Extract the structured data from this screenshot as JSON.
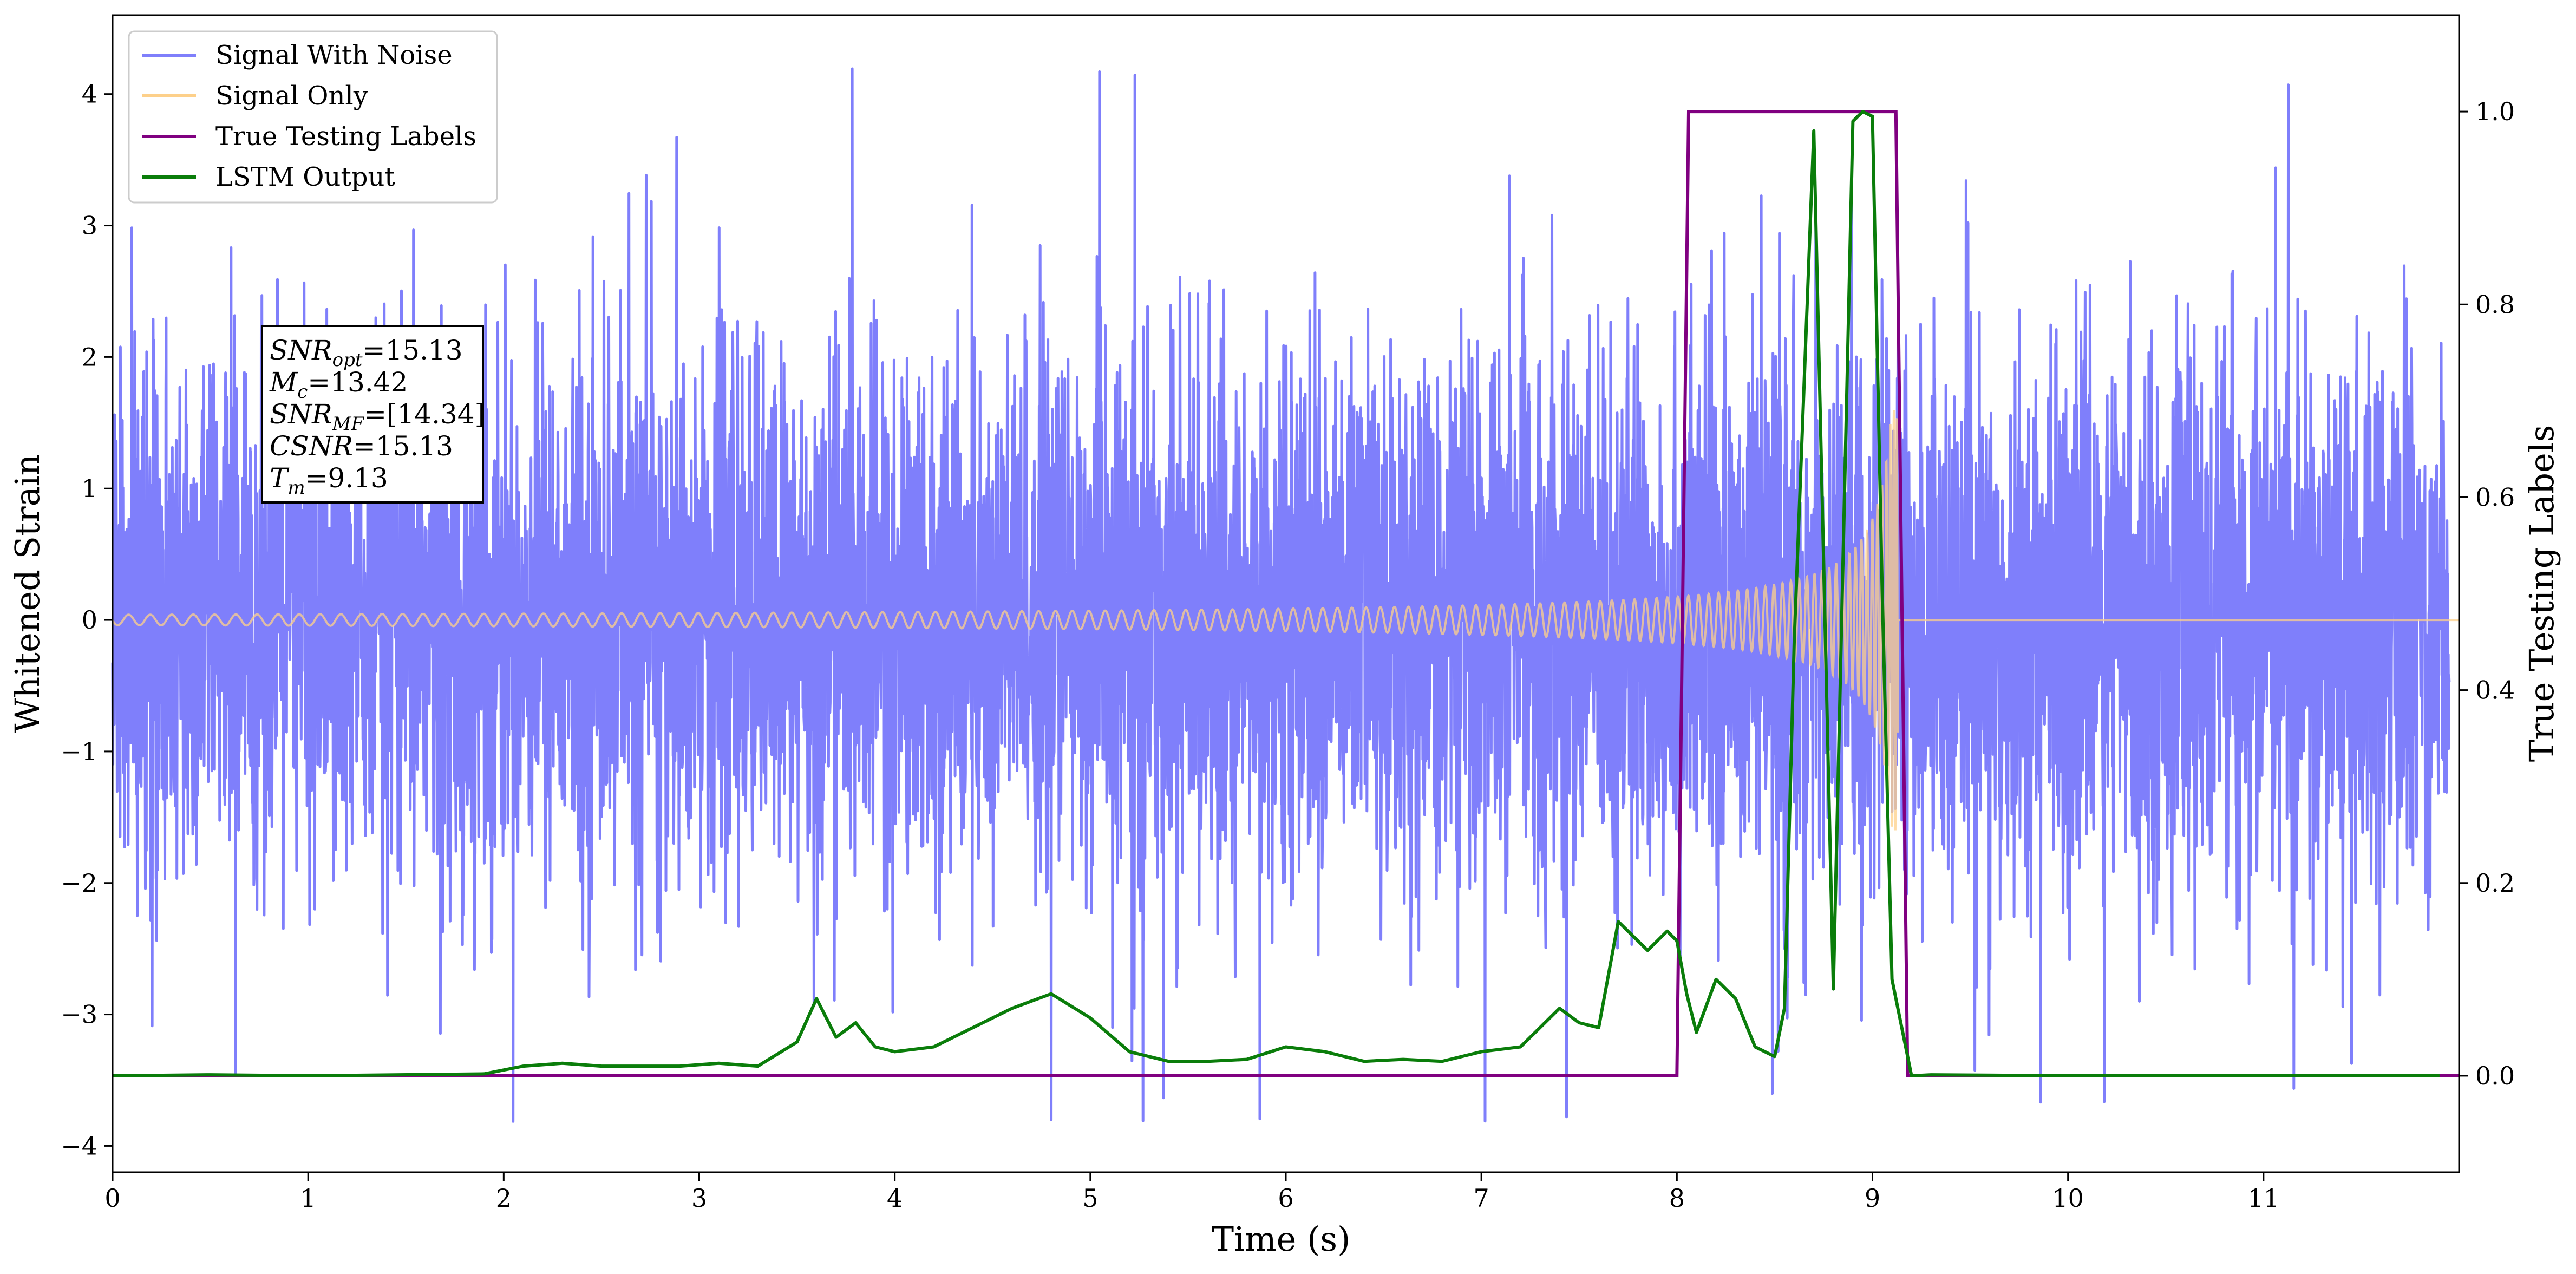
{
  "chart_data": {
    "type": "line",
    "xlabel": "Time (s)",
    "ylabel": "Whitened Strain",
    "y2label": "True Testing Labels",
    "xlim": [
      0,
      12
    ],
    "ylim": [
      -4.2,
      4.6
    ],
    "y2lim": [
      -0.1,
      1.1
    ],
    "xticks": [
      0,
      1,
      2,
      3,
      4,
      5,
      6,
      7,
      8,
      9,
      10,
      11
    ],
    "yticks": [
      -4,
      -3,
      -2,
      -1,
      0,
      1,
      2,
      3,
      4
    ],
    "y2ticks": [
      0.0,
      0.2,
      0.4,
      0.6,
      0.8,
      1.0
    ],
    "legend_position": "top-left",
    "grid": false,
    "colors": {
      "noise": "#7f7ffb",
      "signal": "#fdd08a",
      "labels": "#800080",
      "lstm": "#0a7d0a"
    },
    "series": [
      {
        "name": "Signal With Noise",
        "axis": "left",
        "description_values": {
          "typical_range": [
            -2.5,
            2.5
          ],
          "peak_max": 4.2,
          "peak_min": -3.8
        }
      },
      {
        "name": "Signal Only",
        "axis": "left",
        "chirp": {
          "start": 0,
          "merger": 9.13,
          "amp_start": 0.04,
          "amp_merger": 1.6,
          "after": 0
        }
      },
      {
        "name": "True Testing Labels",
        "axis": "right",
        "x": [
          0,
          8.0,
          8.06,
          9.12,
          9.18,
          12
        ],
        "y": [
          0,
          0,
          1,
          1,
          0,
          0
        ]
      },
      {
        "name": "LSTM Output",
        "axis": "right",
        "x": [
          0,
          0.5,
          1.0,
          1.9,
          2.1,
          2.3,
          2.5,
          2.7,
          2.9,
          3.1,
          3.3,
          3.5,
          3.6,
          3.7,
          3.8,
          3.9,
          4.0,
          4.2,
          4.4,
          4.6,
          4.8,
          5.0,
          5.2,
          5.4,
          5.6,
          5.8,
          6.0,
          6.2,
          6.4,
          6.6,
          6.8,
          7.0,
          7.2,
          7.4,
          7.5,
          7.6,
          7.7,
          7.75,
          7.85,
          7.95,
          8.0,
          8.05,
          8.1,
          8.2,
          8.3,
          8.4,
          8.5,
          8.55,
          8.6,
          8.7,
          8.8,
          8.9,
          8.95,
          9.0,
          9.05,
          9.1,
          9.2,
          9.3,
          10,
          11,
          11.9
        ],
        "y": [
          0,
          0.001,
          0,
          0.002,
          0.01,
          0.013,
          0.01,
          0.01,
          0.01,
          0.013,
          0.01,
          0.035,
          0.08,
          0.04,
          0.055,
          0.03,
          0.025,
          0.03,
          0.05,
          0.07,
          0.085,
          0.06,
          0.025,
          0.015,
          0.015,
          0.017,
          0.03,
          0.025,
          0.015,
          0.017,
          0.015,
          0.025,
          0.03,
          0.07,
          0.055,
          0.05,
          0.16,
          0.15,
          0.13,
          0.15,
          0.14,
          0.085,
          0.045,
          0.1,
          0.08,
          0.03,
          0.02,
          0.07,
          0.45,
          0.98,
          0.09,
          0.99,
          1.0,
          0.995,
          0.5,
          0.1,
          0,
          0.001,
          0,
          0,
          0
        ]
      }
    ],
    "annotations": {
      "lines": [
        {
          "main": "SNR",
          "sub": "opt",
          "value": "=15.13"
        },
        {
          "main": "M",
          "sub": "c",
          "value": "=13.42"
        },
        {
          "main": "SNR",
          "sub": "MF",
          "value": "=[14.34]"
        },
        {
          "main": "CSNR",
          "sub": "",
          "value": "=15.13"
        },
        {
          "main": "T",
          "sub": "m",
          "value": "=9.13"
        }
      ]
    }
  }
}
